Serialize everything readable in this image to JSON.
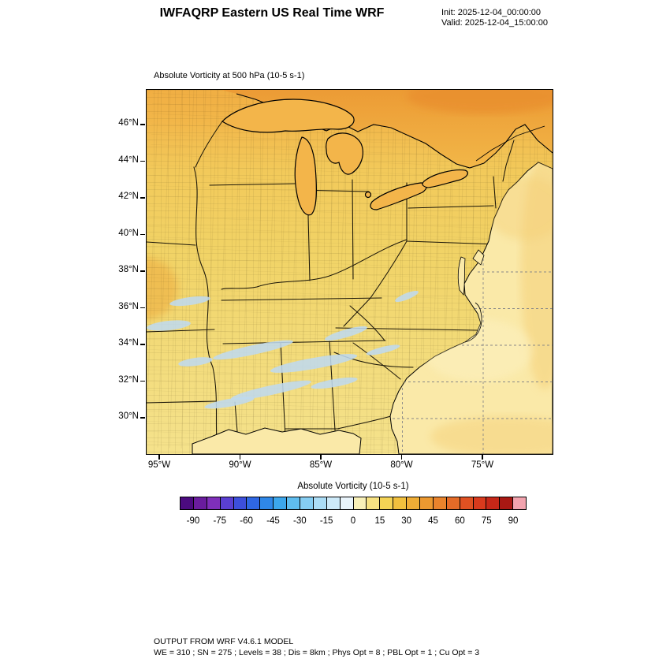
{
  "header": {
    "title": "IWFAQRP Eastern US Real Time WRF",
    "init_label": "Init: 2025-12-04_00:00:00",
    "valid_label": "Valid: 2025-12-04_15:00:00"
  },
  "map": {
    "field_label": "Absolute Vorticity at 500 hPa   (10-5 s-1)",
    "lat_ticks": [
      "46°N",
      "44°N",
      "42°N",
      "40°N",
      "38°N",
      "36°N",
      "34°N",
      "32°N",
      "30°N"
    ],
    "lon_ticks": [
      "95°W",
      "90°W",
      "85°W",
      "80°W",
      "75°W"
    ]
  },
  "colorbar": {
    "title": "Absolute Vorticity  (10-5 s-1)",
    "tick_labels": [
      "-90",
      "-75",
      "-60",
      "-45",
      "-30",
      "-15",
      "0",
      "15",
      "30",
      "45",
      "60",
      "75",
      "90"
    ],
    "colors": [
      "#4C0B80",
      "#6A1C9E",
      "#7F2FBA",
      "#5A3FD2",
      "#3D4FDC",
      "#2F67E4",
      "#2F87E8",
      "#3CA7EC",
      "#5FBDEF",
      "#86CEF3",
      "#ABDDF6",
      "#CDEAF9",
      "#E9F4FB",
      "#F8F0B8",
      "#F7E282",
      "#F4D355",
      "#F1C03E",
      "#EFAD36",
      "#EC9930",
      "#E9832C",
      "#E56B27",
      "#E05122",
      "#D93A1D",
      "#C62718",
      "#A91813",
      "#F2A3AE"
    ],
    "value_min": -97.5,
    "value_max": 97.5
  },
  "footer": {
    "line1": "OUTPUT FROM WRF V4.6.1 MODEL",
    "line2": "WE = 310 ; SN = 275 ; Levels = 38 ; Dis = 8km ; Phys Opt = 8 ; PBL Opt = 1 ; Cu Opt = 3"
  },
  "colors": {
    "land_top": "#EFA23B",
    "land_upper": "#F2B94C",
    "land_mid": "#F2C95A",
    "land_lower": "#F1D366",
    "land_south": "#F3DC7C",
    "land_gulf": "#F5E28C",
    "canada_top": "#EC9B35",
    "canada_low": "#F2B748",
    "canada_deep": "#E98F2E",
    "ocean": "#FAE9A8",
    "ocean_warm": "#F4CE74",
    "ocean_pale": "#FCF0BE",
    "lake": "#F3B54A",
    "neg_vort": "#BFDAEE",
    "warm_patch": "#EFB649"
  }
}
